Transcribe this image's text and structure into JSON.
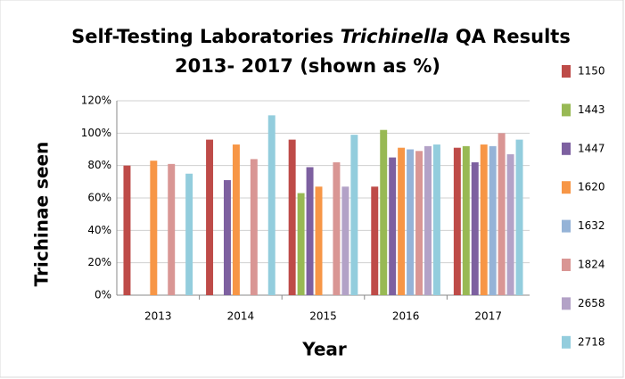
{
  "chart_data": {
    "type": "bar",
    "title": [
      "Self-Testing Laboratories",
      "Trichinella",
      "QA Results",
      "2013- 2017 (shown as %)"
    ],
    "x_label": "Year",
    "y_label": "Trichinae seen",
    "categories": [
      "2013",
      "2014",
      "2015",
      "2016",
      "2017"
    ],
    "series": [
      {
        "name": "1150",
        "color": "#be4b48",
        "values": [
          80,
          96,
          96,
          67,
          91
        ]
      },
      {
        "name": "1443",
        "color": "#98b954",
        "values": [
          null,
          null,
          63,
          102,
          92
        ]
      },
      {
        "name": "1447",
        "color": "#7d60a0",
        "values": [
          null,
          71,
          79,
          85,
          82
        ]
      },
      {
        "name": "1620",
        "color": "#f79646",
        "values": [
          83,
          93,
          67,
          91,
          93
        ]
      },
      {
        "name": "1632",
        "color": "#95b3d7",
        "values": [
          null,
          null,
          null,
          90,
          92
        ]
      },
      {
        "name": "1824",
        "color": "#d99694",
        "values": [
          81,
          84,
          82,
          89,
          100
        ]
      },
      {
        "name": "2658",
        "color": "#b3a2c7",
        "values": [
          null,
          null,
          67,
          92,
          87
        ]
      },
      {
        "name": "2718",
        "color": "#93cddd",
        "values": [
          75,
          111,
          99,
          93,
          96
        ]
      }
    ],
    "ylim": [
      0,
      120
    ],
    "yticks": [
      {
        "value": 0,
        "label": "0%"
      },
      {
        "value": 20,
        "label": "20%"
      },
      {
        "value": 40,
        "label": "40%"
      },
      {
        "value": 60,
        "label": "60%"
      },
      {
        "value": 80,
        "label": "80%"
      },
      {
        "value": 100,
        "label": "100%"
      },
      {
        "value": 120,
        "label": "120%"
      }
    ],
    "grid": true,
    "legend": "right"
  }
}
